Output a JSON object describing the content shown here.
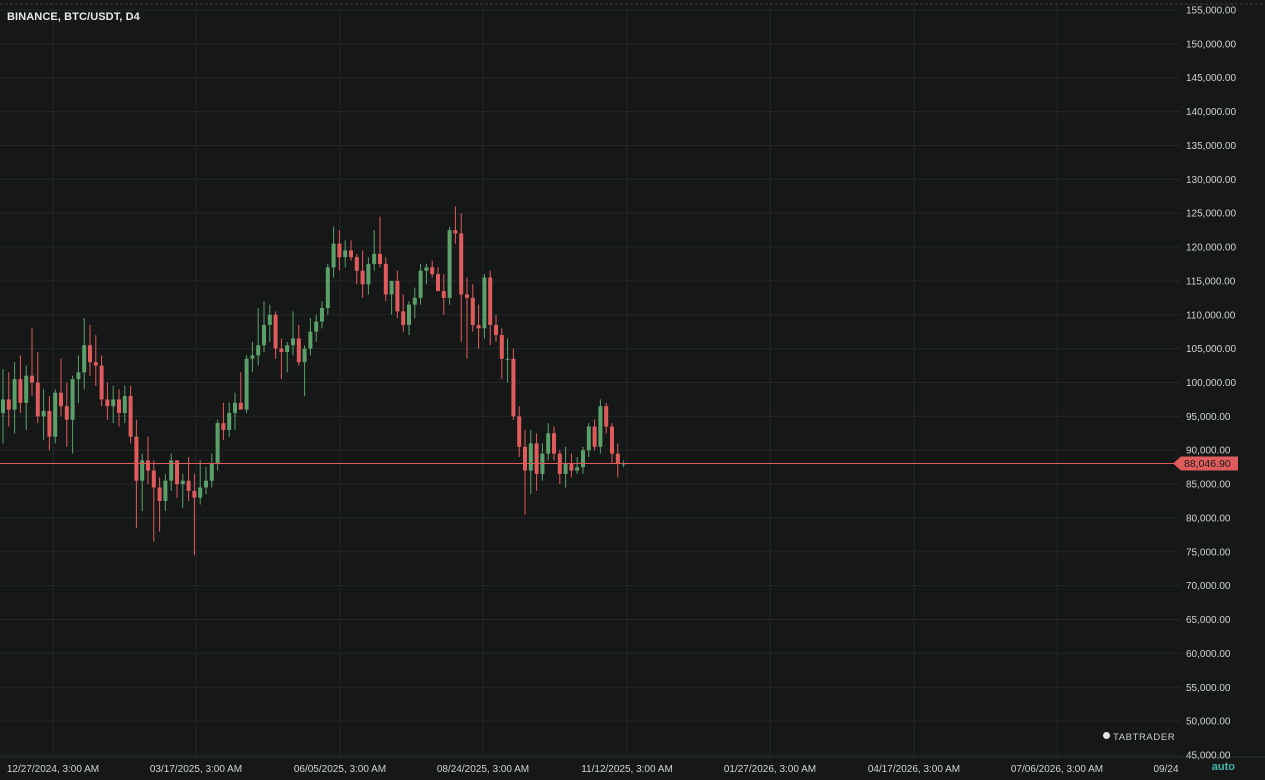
{
  "header": {
    "symbol": "BINANCE, BTC/USDT, D4"
  },
  "controls": {
    "auto_label": "auto"
  },
  "brand": {
    "name": "TABTRADER"
  },
  "colors": {
    "up": "#5b9f6b",
    "down": "#e05c5c",
    "grid": "#232626",
    "axis_text": "#cfd3d6",
    "background": "#161818"
  },
  "chart_data": {
    "type": "candlestick",
    "y_axis": {
      "min": 45000,
      "max": 155000,
      "step": 5000,
      "ticks": [
        "45,000.00",
        "50,000.00",
        "55,000.00",
        "60,000.00",
        "65,000.00",
        "70,000.00",
        "75,000.00",
        "80,000.00",
        "85,000.00",
        "90,000.00",
        "95,000.00",
        "100,000.00",
        "105,000.00",
        "110,000.00",
        "115,000.00",
        "120,000.00",
        "125,000.00",
        "130,000.00",
        "135,000.00",
        "140,000.00",
        "145,000.00",
        "150,000.00",
        "155,000.00"
      ]
    },
    "x_axis": {
      "ticks": [
        "12/27/2024, 3:00 AM",
        "03/17/2025, 3:00 AM",
        "06/05/2025, 3:00 AM",
        "08/24/2025, 3:00 AM",
        "11/12/2025, 3:00 AM",
        "01/27/2026, 3:00 AM",
        "04/17/2026, 3:00 AM",
        "07/06/2026, 3:00 AM",
        "09/24"
      ]
    },
    "last_price": {
      "value": 88046.9,
      "label": "88,046.90"
    },
    "candles": [
      {
        "o": 95500,
        "h": 102000,
        "l": 91000,
        "c": 97500
      },
      {
        "o": 97500,
        "h": 101500,
        "l": 93500,
        "c": 96000
      },
      {
        "o": 96000,
        "h": 103000,
        "l": 92500,
        "c": 100500
      },
      {
        "o": 100500,
        "h": 104000,
        "l": 95500,
        "c": 97000
      },
      {
        "o": 97000,
        "h": 102500,
        "l": 93000,
        "c": 101000
      },
      {
        "o": 101000,
        "h": 108000,
        "l": 98000,
        "c": 100000
      },
      {
        "o": 100000,
        "h": 104500,
        "l": 94000,
        "c": 95000
      },
      {
        "o": 95000,
        "h": 99000,
        "l": 91500,
        "c": 95800
      },
      {
        "o": 95800,
        "h": 98000,
        "l": 90000,
        "c": 92000
      },
      {
        "o": 92000,
        "h": 99000,
        "l": 91000,
        "c": 98500
      },
      {
        "o": 98500,
        "h": 103500,
        "l": 95000,
        "c": 96500
      },
      {
        "o": 96500,
        "h": 100000,
        "l": 90500,
        "c": 94500
      },
      {
        "o": 94500,
        "h": 101000,
        "l": 89500,
        "c": 100500
      },
      {
        "o": 100500,
        "h": 104000,
        "l": 97000,
        "c": 101500
      },
      {
        "o": 101500,
        "h": 109500,
        "l": 99000,
        "c": 105500
      },
      {
        "o": 105500,
        "h": 108500,
        "l": 101000,
        "c": 103000
      },
      {
        "o": 103000,
        "h": 107000,
        "l": 99500,
        "c": 102500
      },
      {
        "o": 102500,
        "h": 104000,
        "l": 96500,
        "c": 97500
      },
      {
        "o": 97500,
        "h": 100000,
        "l": 94500,
        "c": 96500
      },
      {
        "o": 96500,
        "h": 99500,
        "l": 94000,
        "c": 97500
      },
      {
        "o": 97500,
        "h": 99000,
        "l": 93500,
        "c": 95500
      },
      {
        "o": 95500,
        "h": 99500,
        "l": 94000,
        "c": 98000
      },
      {
        "o": 98000,
        "h": 99500,
        "l": 91000,
        "c": 92000
      },
      {
        "o": 92000,
        "h": 94500,
        "l": 78500,
        "c": 85500
      },
      {
        "o": 85500,
        "h": 89500,
        "l": 81000,
        "c": 88500
      },
      {
        "o": 88500,
        "h": 92000,
        "l": 85000,
        "c": 87000
      },
      {
        "o": 87000,
        "h": 88500,
        "l": 76500,
        "c": 84500
      },
      {
        "o": 84500,
        "h": 86000,
        "l": 78000,
        "c": 82500
      },
      {
        "o": 82500,
        "h": 86500,
        "l": 81000,
        "c": 85500
      },
      {
        "o": 85500,
        "h": 89500,
        "l": 84000,
        "c": 88500
      },
      {
        "o": 88500,
        "h": 88500,
        "l": 83000,
        "c": 85000
      },
      {
        "o": 85000,
        "h": 86500,
        "l": 81500,
        "c": 85500
      },
      {
        "o": 85500,
        "h": 89000,
        "l": 82500,
        "c": 84000
      },
      {
        "o": 84000,
        "h": 86500,
        "l": 74500,
        "c": 83000
      },
      {
        "o": 83000,
        "h": 88500,
        "l": 82000,
        "c": 84500
      },
      {
        "o": 84500,
        "h": 87500,
        "l": 83500,
        "c": 85500
      },
      {
        "o": 85500,
        "h": 89500,
        "l": 84500,
        "c": 88000
      },
      {
        "o": 88000,
        "h": 94500,
        "l": 87000,
        "c": 94000
      },
      {
        "o": 94000,
        "h": 97000,
        "l": 91500,
        "c": 93000
      },
      {
        "o": 93000,
        "h": 97000,
        "l": 92000,
        "c": 95500
      },
      {
        "o": 95500,
        "h": 98500,
        "l": 93000,
        "c": 97000
      },
      {
        "o": 97000,
        "h": 101500,
        "l": 96000,
        "c": 96000
      },
      {
        "o": 96000,
        "h": 104000,
        "l": 95500,
        "c": 103500
      },
      {
        "o": 103500,
        "h": 106000,
        "l": 101500,
        "c": 104000
      },
      {
        "o": 104000,
        "h": 111000,
        "l": 102500,
        "c": 105500
      },
      {
        "o": 105500,
        "h": 112000,
        "l": 104500,
        "c": 108500
      },
      {
        "o": 108500,
        "h": 111500,
        "l": 106000,
        "c": 110000
      },
      {
        "o": 110000,
        "h": 110500,
        "l": 103500,
        "c": 105000
      },
      {
        "o": 105000,
        "h": 106500,
        "l": 100500,
        "c": 104500
      },
      {
        "o": 104500,
        "h": 106000,
        "l": 101500,
        "c": 105500
      },
      {
        "o": 105500,
        "h": 110500,
        "l": 104000,
        "c": 106500
      },
      {
        "o": 106500,
        "h": 108500,
        "l": 102500,
        "c": 103000
      },
      {
        "o": 103000,
        "h": 105500,
        "l": 98000,
        "c": 105000
      },
      {
        "o": 105000,
        "h": 109500,
        "l": 104000,
        "c": 107500
      },
      {
        "o": 107500,
        "h": 110000,
        "l": 106000,
        "c": 109000
      },
      {
        "o": 109000,
        "h": 112000,
        "l": 108000,
        "c": 111000
      },
      {
        "o": 111000,
        "h": 117500,
        "l": 110000,
        "c": 117000
      },
      {
        "o": 117000,
        "h": 123000,
        "l": 115500,
        "c": 120500
      },
      {
        "o": 120500,
        "h": 122500,
        "l": 116500,
        "c": 118500
      },
      {
        "o": 118500,
        "h": 121000,
        "l": 117000,
        "c": 119500
      },
      {
        "o": 119500,
        "h": 121000,
        "l": 118000,
        "c": 118500
      },
      {
        "o": 118500,
        "h": 119000,
        "l": 114500,
        "c": 116500
      },
      {
        "o": 116500,
        "h": 119500,
        "l": 112500,
        "c": 114500
      },
      {
        "o": 114500,
        "h": 118500,
        "l": 113000,
        "c": 117500
      },
      {
        "o": 117500,
        "h": 122500,
        "l": 116500,
        "c": 119000
      },
      {
        "o": 119000,
        "h": 124500,
        "l": 117000,
        "c": 117500
      },
      {
        "o": 117500,
        "h": 118500,
        "l": 112000,
        "c": 113000
      },
      {
        "o": 113000,
        "h": 115000,
        "l": 110000,
        "c": 115000
      },
      {
        "o": 115000,
        "h": 116500,
        "l": 109500,
        "c": 110500
      },
      {
        "o": 110500,
        "h": 113000,
        "l": 107500,
        "c": 108500
      },
      {
        "o": 108500,
        "h": 112000,
        "l": 107000,
        "c": 111500
      },
      {
        "o": 111500,
        "h": 114000,
        "l": 109500,
        "c": 112500
      },
      {
        "o": 112500,
        "h": 117500,
        "l": 111500,
        "c": 116500
      },
      {
        "o": 116500,
        "h": 117500,
        "l": 114500,
        "c": 117000
      },
      {
        "o": 117000,
        "h": 118000,
        "l": 115500,
        "c": 116000
      },
      {
        "o": 116000,
        "h": 117000,
        "l": 113500,
        "c": 113500
      },
      {
        "o": 113500,
        "h": 116000,
        "l": 110000,
        "c": 112500
      },
      {
        "o": 112500,
        "h": 123000,
        "l": 111500,
        "c": 122500
      },
      {
        "o": 122500,
        "h": 126000,
        "l": 120500,
        "c": 122000
      },
      {
        "o": 122000,
        "h": 125000,
        "l": 106000,
        "c": 113000
      },
      {
        "o": 113000,
        "h": 115500,
        "l": 103500,
        "c": 112500
      },
      {
        "o": 112500,
        "h": 114500,
        "l": 107500,
        "c": 108500
      },
      {
        "o": 108500,
        "h": 111500,
        "l": 105000,
        "c": 108000
      },
      {
        "o": 108000,
        "h": 116000,
        "l": 106500,
        "c": 115500
      },
      {
        "o": 115500,
        "h": 116500,
        "l": 105500,
        "c": 108500
      },
      {
        "o": 108500,
        "h": 110000,
        "l": 106000,
        "c": 107000
      },
      {
        "o": 107000,
        "h": 108000,
        "l": 100500,
        "c": 103500
      },
      {
        "o": 103500,
        "h": 106500,
        "l": 100000,
        "c": 103500
      },
      {
        "o": 103500,
        "h": 105000,
        "l": 94500,
        "c": 95000
      },
      {
        "o": 95000,
        "h": 96500,
        "l": 89000,
        "c": 90500
      },
      {
        "o": 90500,
        "h": 93000,
        "l": 80500,
        "c": 87000
      },
      {
        "o": 87000,
        "h": 93000,
        "l": 83500,
        "c": 91000
      },
      {
        "o": 91000,
        "h": 92500,
        "l": 84000,
        "c": 86500
      },
      {
        "o": 86500,
        "h": 91000,
        "l": 85500,
        "c": 89500
      },
      {
        "o": 89500,
        "h": 94000,
        "l": 88500,
        "c": 92500
      },
      {
        "o": 92500,
        "h": 93500,
        "l": 88500,
        "c": 89500
      },
      {
        "o": 89500,
        "h": 90000,
        "l": 85000,
        "c": 86500
      },
      {
        "o": 86500,
        "h": 90500,
        "l": 84500,
        "c": 88000
      },
      {
        "o": 88000,
        "h": 89500,
        "l": 86000,
        "c": 87000
      },
      {
        "o": 87000,
        "h": 89000,
        "l": 86500,
        "c": 87500
      },
      {
        "o": 87500,
        "h": 90500,
        "l": 86500,
        "c": 90000
      },
      {
        "o": 90000,
        "h": 94000,
        "l": 89000,
        "c": 93500
      },
      {
        "o": 93500,
        "h": 94500,
        "l": 90000,
        "c": 90500
      },
      {
        "o": 90500,
        "h": 97500,
        "l": 89500,
        "c": 96500
      },
      {
        "o": 96500,
        "h": 97000,
        "l": 92500,
        "c": 93500
      },
      {
        "o": 93500,
        "h": 94000,
        "l": 88000,
        "c": 89500
      },
      {
        "o": 89500,
        "h": 91000,
        "l": 86000,
        "c": 88000
      },
      {
        "o": 88000,
        "h": 88500,
        "l": 87500,
        "c": 88047
      }
    ]
  }
}
